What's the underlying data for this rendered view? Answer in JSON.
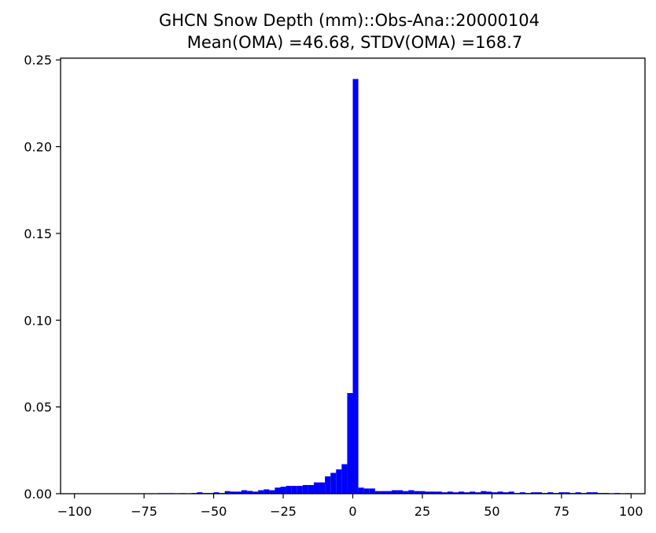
{
  "chart_data": {
    "type": "bar",
    "title": "GHCN Snow Depth (mm)::Obs-Ana::20000104",
    "subtitle": "Mean(OMA) =46.68, STDV(OMA) =168.7",
    "xlim": [
      -105,
      105
    ],
    "ylim": [
      0,
      0.251
    ],
    "xticks": [
      -100,
      -75,
      -50,
      -25,
      0,
      25,
      50,
      75,
      100
    ],
    "xtick_labels": [
      "−100",
      "−75",
      "−50",
      "−25",
      "0",
      "25",
      "50",
      "75",
      "100"
    ],
    "yticks": [
      0,
      0.05,
      0.1,
      0.15,
      0.2,
      0.25
    ],
    "ytick_labels": [
      "0.00",
      "0.05",
      "0.10",
      "0.15",
      "0.20",
      "0.25"
    ],
    "bin_width": 2,
    "bar_color": "#0000ff",
    "bins": [
      {
        "x": -70,
        "y": 0.0003
      },
      {
        "x": -68,
        "y": 0.0003
      },
      {
        "x": -66,
        "y": 0.0003
      },
      {
        "x": -62,
        "y": 0.0003
      },
      {
        "x": -58,
        "y": 0.0004
      },
      {
        "x": -56,
        "y": 0.0008
      },
      {
        "x": -54,
        "y": 0.0004
      },
      {
        "x": -52,
        "y": 0.0004
      },
      {
        "x": -50,
        "y": 0.0008
      },
      {
        "x": -48,
        "y": 0.0004
      },
      {
        "x": -46,
        "y": 0.0015
      },
      {
        "x": -44,
        "y": 0.0012
      },
      {
        "x": -42,
        "y": 0.0012
      },
      {
        "x": -40,
        "y": 0.002
      },
      {
        "x": -38,
        "y": 0.0016
      },
      {
        "x": -36,
        "y": 0.0012
      },
      {
        "x": -34,
        "y": 0.002
      },
      {
        "x": -32,
        "y": 0.0025
      },
      {
        "x": -30,
        "y": 0.002
      },
      {
        "x": -28,
        "y": 0.0035
      },
      {
        "x": -26,
        "y": 0.004
      },
      {
        "x": -24,
        "y": 0.0045
      },
      {
        "x": -22,
        "y": 0.0045
      },
      {
        "x": -20,
        "y": 0.0045
      },
      {
        "x": -18,
        "y": 0.005
      },
      {
        "x": -16,
        "y": 0.005
      },
      {
        "x": -14,
        "y": 0.0065
      },
      {
        "x": -12,
        "y": 0.0065
      },
      {
        "x": -10,
        "y": 0.01
      },
      {
        "x": -8,
        "y": 0.012
      },
      {
        "x": -6,
        "y": 0.014
      },
      {
        "x": -4,
        "y": 0.017
      },
      {
        "x": -2,
        "y": 0.058
      },
      {
        "x": 0,
        "y": 0.239
      },
      {
        "x": 2,
        "y": 0.0035
      },
      {
        "x": 4,
        "y": 0.003
      },
      {
        "x": 6,
        "y": 0.003
      },
      {
        "x": 8,
        "y": 0.0015
      },
      {
        "x": 10,
        "y": 0.0015
      },
      {
        "x": 12,
        "y": 0.0015
      },
      {
        "x": 14,
        "y": 0.002
      },
      {
        "x": 16,
        "y": 0.002
      },
      {
        "x": 18,
        "y": 0.0015
      },
      {
        "x": 20,
        "y": 0.002
      },
      {
        "x": 22,
        "y": 0.0015
      },
      {
        "x": 24,
        "y": 0.0015
      },
      {
        "x": 26,
        "y": 0.0012
      },
      {
        "x": 28,
        "y": 0.0012
      },
      {
        "x": 30,
        "y": 0.0012
      },
      {
        "x": 32,
        "y": 0.0008
      },
      {
        "x": 34,
        "y": 0.0012
      },
      {
        "x": 36,
        "y": 0.0008
      },
      {
        "x": 38,
        "y": 0.0012
      },
      {
        "x": 40,
        "y": 0.0008
      },
      {
        "x": 42,
        "y": 0.0012
      },
      {
        "x": 44,
        "y": 0.0008
      },
      {
        "x": 46,
        "y": 0.0015
      },
      {
        "x": 48,
        "y": 0.0012
      },
      {
        "x": 50,
        "y": 0.0008
      },
      {
        "x": 52,
        "y": 0.0012
      },
      {
        "x": 54,
        "y": 0.0008
      },
      {
        "x": 56,
        "y": 0.0012
      },
      {
        "x": 58,
        "y": 0.0004
      },
      {
        "x": 60,
        "y": 0.0008
      },
      {
        "x": 62,
        "y": 0.0004
      },
      {
        "x": 64,
        "y": 0.0008
      },
      {
        "x": 66,
        "y": 0.0008
      },
      {
        "x": 68,
        "y": 0.0004
      },
      {
        "x": 70,
        "y": 0.0008
      },
      {
        "x": 72,
        "y": 0.0004
      },
      {
        "x": 74,
        "y": 0.0008
      },
      {
        "x": 76,
        "y": 0.0008
      },
      {
        "x": 78,
        "y": 0.0004
      },
      {
        "x": 80,
        "y": 0.0008
      },
      {
        "x": 82,
        "y": 0.0004
      },
      {
        "x": 84,
        "y": 0.0008
      },
      {
        "x": 86,
        "y": 0.0008
      },
      {
        "x": 88,
        "y": 0.0004
      },
      {
        "x": 90,
        "y": 0.0004
      },
      {
        "x": 94,
        "y": 0.0004
      },
      {
        "x": 98,
        "y": 0.0003
      }
    ]
  }
}
